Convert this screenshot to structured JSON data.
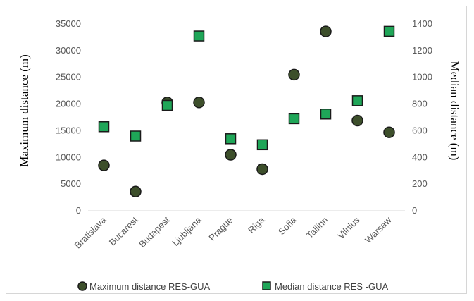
{
  "chart_data": {
    "type": "scatter",
    "categories": [
      "Bratislava",
      "Bucarest",
      "Budapest",
      "Ljubljana",
      "Prague",
      "Riga",
      "Sofia",
      "Tallinn",
      "Vilnius",
      "Warsaw"
    ],
    "series": [
      {
        "name": "Maximum distance RES-GUA",
        "axis": "left",
        "marker": "circle",
        "color": "#3d4f2b",
        "values": [
          8500,
          3600,
          20300,
          20300,
          10500,
          7800,
          25500,
          33600,
          16900,
          14700
        ]
      },
      {
        "name": "Median distance RES -GUA",
        "axis": "right",
        "marker": "square",
        "color": "#1fa658",
        "values": [
          630,
          560,
          790,
          1310,
          540,
          495,
          690,
          725,
          825,
          1345
        ]
      }
    ],
    "ylabel": "Maximum distance (m)",
    "y2label": "Median distance (m)",
    "ylim": [
      0,
      35000
    ],
    "y2lim": [
      0,
      1400
    ],
    "yticks": [
      "0",
      "5000",
      "10000",
      "15000",
      "20000",
      "25000",
      "30000",
      "35000"
    ],
    "y2ticks": [
      "0",
      "200",
      "400",
      "600",
      "800",
      "1000",
      "1200",
      "1400"
    ],
    "grid": false,
    "legend_position": "bottom"
  }
}
